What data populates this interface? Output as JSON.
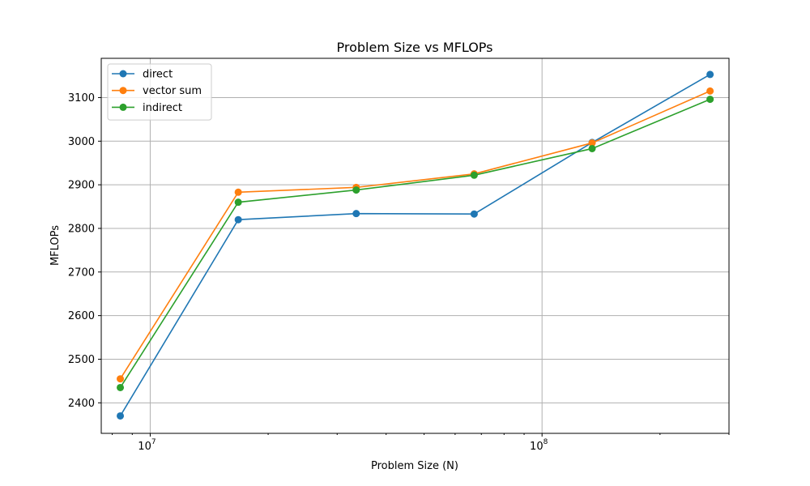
{
  "chart_data": {
    "type": "line",
    "title": "Problem Size vs MFLOPs",
    "xlabel": "Problem Size (N)",
    "ylabel": "MFLOPs",
    "xscale": "log",
    "xlim": [
      7500000,
      300000000
    ],
    "ylim": [
      2330,
      3190
    ],
    "x": [
      8388608,
      16777216,
      33554432,
      67108864,
      134217728,
      268435456
    ],
    "x_major_ticks": [
      {
        "value": 10000000,
        "base": "10",
        "exp": "7"
      },
      {
        "value": 100000000,
        "base": "10",
        "exp": "8"
      }
    ],
    "yticks": [
      2400,
      2500,
      2600,
      2700,
      2800,
      2900,
      3000,
      3100
    ],
    "grid": true,
    "legend_position": "top-left",
    "series": [
      {
        "name": "direct",
        "color": "#1f77b4",
        "values": [
          2370,
          2820,
          2834,
          2833,
          2997,
          3153
        ]
      },
      {
        "name": "vector sum",
        "color": "#ff7f0e",
        "values": [
          2455,
          2883,
          2894,
          2925,
          2996,
          3115
        ]
      },
      {
        "name": "indirect",
        "color": "#2ca02c",
        "values": [
          2435,
          2860,
          2888,
          2922,
          2983,
          3096
        ]
      }
    ]
  }
}
